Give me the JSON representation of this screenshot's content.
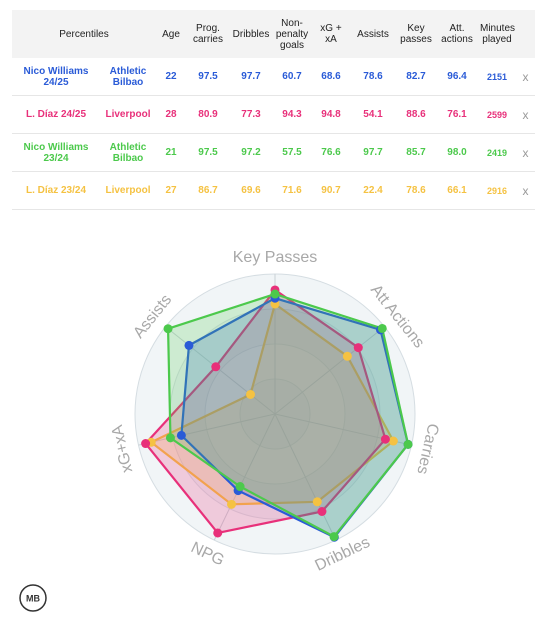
{
  "chart_data": {
    "type": "radar",
    "table_headers": [
      "Percentiles",
      "Age",
      "Prog. carries",
      "Dribbles",
      "Non-penalty goals",
      "xG + xA",
      "Assists",
      "Key passes",
      "Att. actions",
      "Minutes played"
    ],
    "categories": [
      "Carries",
      "Dribbles",
      "NPG",
      "xG+xA",
      "Assists",
      "Key Passes",
      "Att Actions"
    ],
    "rlim": [
      0,
      100
    ],
    "rticks": [
      25,
      50,
      75,
      100
    ],
    "remove_label": "x",
    "logo": "MB",
    "series": [
      {
        "name": "Nico Williams 24/25",
        "team": "Athletic Bilbao",
        "age": 22,
        "minutes": 2151,
        "color": "#2a5bd7",
        "values": [
          97.5,
          97.7,
          60.7,
          68.6,
          78.6,
          82.7,
          96.4
        ]
      },
      {
        "name": "L. Díaz 24/25",
        "team": "Liverpool",
        "age": 28,
        "minutes": 2599,
        "color": "#e8307a",
        "values": [
          80.9,
          77.3,
          94.3,
          94.8,
          54.1,
          88.6,
          76.1
        ]
      },
      {
        "name": "Nico Williams 23/24",
        "team": "Athletic Bilbao",
        "age": 21,
        "minutes": 2419,
        "color": "#4cc94c",
        "values": [
          97.5,
          97.2,
          57.5,
          76.6,
          97.7,
          85.7,
          98.0
        ],
        "value_labels": [
          "97.5",
          "97.2",
          "57.5",
          "76.6",
          "97.7",
          "85.7",
          "98.0"
        ]
      },
      {
        "name": "L. Díaz 23/24",
        "team": "Liverpool",
        "age": 27,
        "minutes": 2916,
        "color": "#f5c242",
        "values": [
          86.7,
          69.6,
          71.6,
          90.7,
          22.4,
          78.6,
          66.1
        ]
      }
    ]
  }
}
